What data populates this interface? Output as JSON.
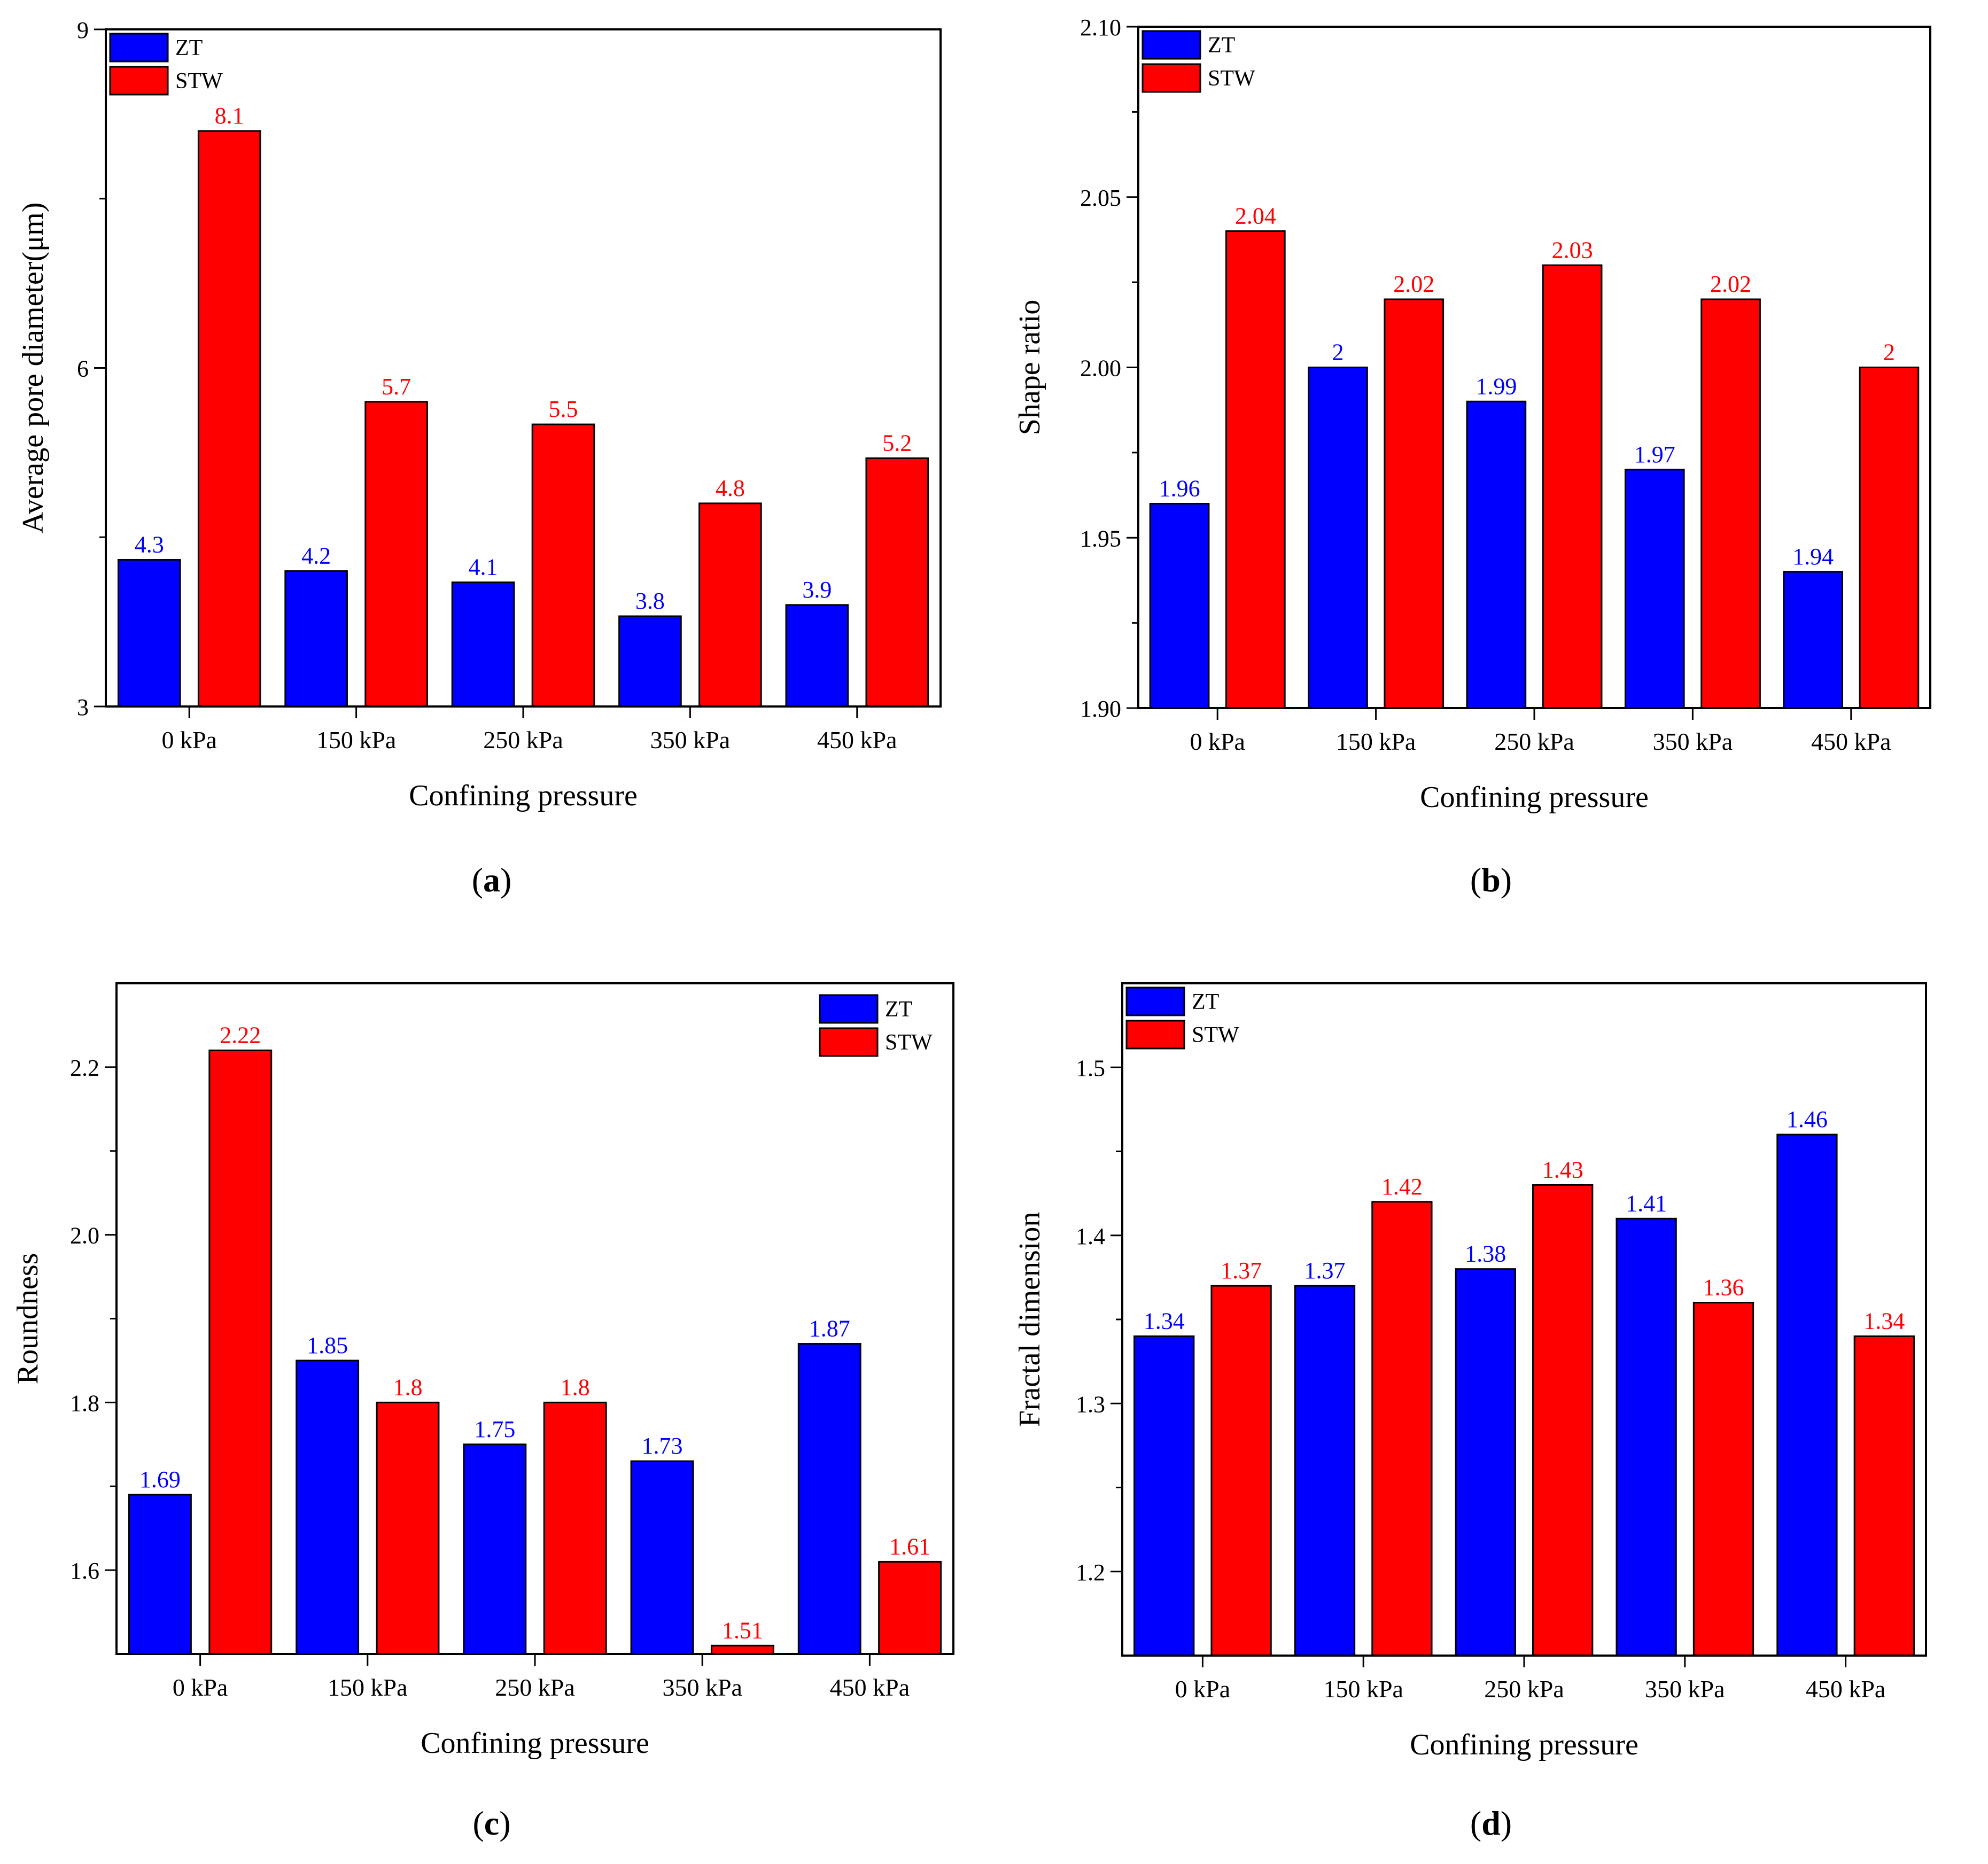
{
  "figure": {
    "series_colors": {
      "ZT": "#0000ff",
      "STW": "#ff0000"
    },
    "edge_color": "#000000"
  },
  "chart_data": [
    {
      "panel": "a",
      "caption": "(a)",
      "type": "bar",
      "categories": [
        "0 kPa",
        "150 kPa",
        "250 kPa",
        "350 kPa",
        "450 kPa"
      ],
      "series": [
        {
          "name": "ZT",
          "values": [
            4.3,
            4.2,
            4.1,
            3.8,
            3.9
          ],
          "labels": [
            "4.3",
            "4.2",
            "4.1",
            "3.8",
            "3.9"
          ]
        },
        {
          "name": "STW",
          "values": [
            8.1,
            5.7,
            5.5,
            4.8,
            5.2
          ],
          "labels": [
            "8.1",
            "5.7",
            "5.5",
            "4.8",
            "5.2"
          ]
        }
      ],
      "xlabel": "Confining pressure",
      "ylabel": "Average pore diameter(μm)",
      "ylim": [
        3,
        9
      ],
      "yticks": [
        3,
        6,
        9
      ],
      "ytick_labels": [
        "3",
        "6",
        "9"
      ],
      "minor_step": 1.5,
      "legend": "top-left"
    },
    {
      "panel": "b",
      "caption": "(b)",
      "type": "bar",
      "categories": [
        "0 kPa",
        "150 kPa",
        "250 kPa",
        "350 kPa",
        "450 kPa"
      ],
      "series": [
        {
          "name": "ZT",
          "values": [
            1.96,
            2.0,
            1.99,
            1.97,
            1.94
          ],
          "labels": [
            "1.96",
            "2",
            "1.99",
            "1.97",
            "1.94"
          ]
        },
        {
          "name": "STW",
          "values": [
            2.04,
            2.02,
            2.03,
            2.02,
            2.0
          ],
          "labels": [
            "2.04",
            "2.02",
            "2.03",
            "2.02",
            "2"
          ]
        }
      ],
      "xlabel": "Confining pressure",
      "ylabel": "Shape ratio",
      "ylim": [
        1.9,
        2.1
      ],
      "yticks": [
        1.9,
        1.95,
        2.0,
        2.05,
        2.1
      ],
      "ytick_labels": [
        "1.90",
        "1.95",
        "2.00",
        "2.05",
        "2.10"
      ],
      "minor_step": 0.025,
      "legend": "top-left"
    },
    {
      "panel": "c",
      "caption": "(c)",
      "type": "bar",
      "categories": [
        "0 kPa",
        "150 kPa",
        "250 kPa",
        "350 kPa",
        "450 kPa"
      ],
      "series": [
        {
          "name": "ZT",
          "values": [
            1.69,
            1.85,
            1.75,
            1.73,
            1.87
          ],
          "labels": [
            "1.69",
            "1.85",
            "1.75",
            "1.73",
            "1.87"
          ]
        },
        {
          "name": "STW",
          "values": [
            2.22,
            1.8,
            1.8,
            1.51,
            1.61
          ],
          "labels": [
            "2.22",
            "1.8",
            "1.8",
            "1.51",
            "1.61"
          ]
        }
      ],
      "xlabel": "Confining pressure",
      "ylabel": "Roundness",
      "ylim": [
        1.5,
        2.3
      ],
      "yticks": [
        1.6,
        1.8,
        2.0,
        2.2
      ],
      "ytick_labels": [
        "1.6",
        "1.8",
        "2.0",
        "2.2"
      ],
      "minor_step": 0.1,
      "legend": "top-right"
    },
    {
      "panel": "d",
      "caption": "(d)",
      "type": "bar",
      "categories": [
        "0 kPa",
        "150 kPa",
        "250 kPa",
        "350 kPa",
        "450 kPa"
      ],
      "series": [
        {
          "name": "ZT",
          "values": [
            1.34,
            1.37,
            1.38,
            1.41,
            1.46
          ],
          "labels": [
            "1.34",
            "1.37",
            "1.38",
            "1.41",
            "1.46"
          ]
        },
        {
          "name": "STW",
          "values": [
            1.37,
            1.42,
            1.43,
            1.36,
            1.34
          ],
          "labels": [
            "1.37",
            "1.42",
            "1.43",
            "1.36",
            "1.34"
          ]
        }
      ],
      "xlabel": "Confining pressure",
      "ylabel": "Fractal dimension",
      "ylim": [
        1.15,
        1.55
      ],
      "yticks": [
        1.2,
        1.3,
        1.4,
        1.5
      ],
      "ytick_labels": [
        "1.2",
        "1.3",
        "1.4",
        "1.5"
      ],
      "minor_step": 0.05,
      "legend": "top-left"
    }
  ]
}
